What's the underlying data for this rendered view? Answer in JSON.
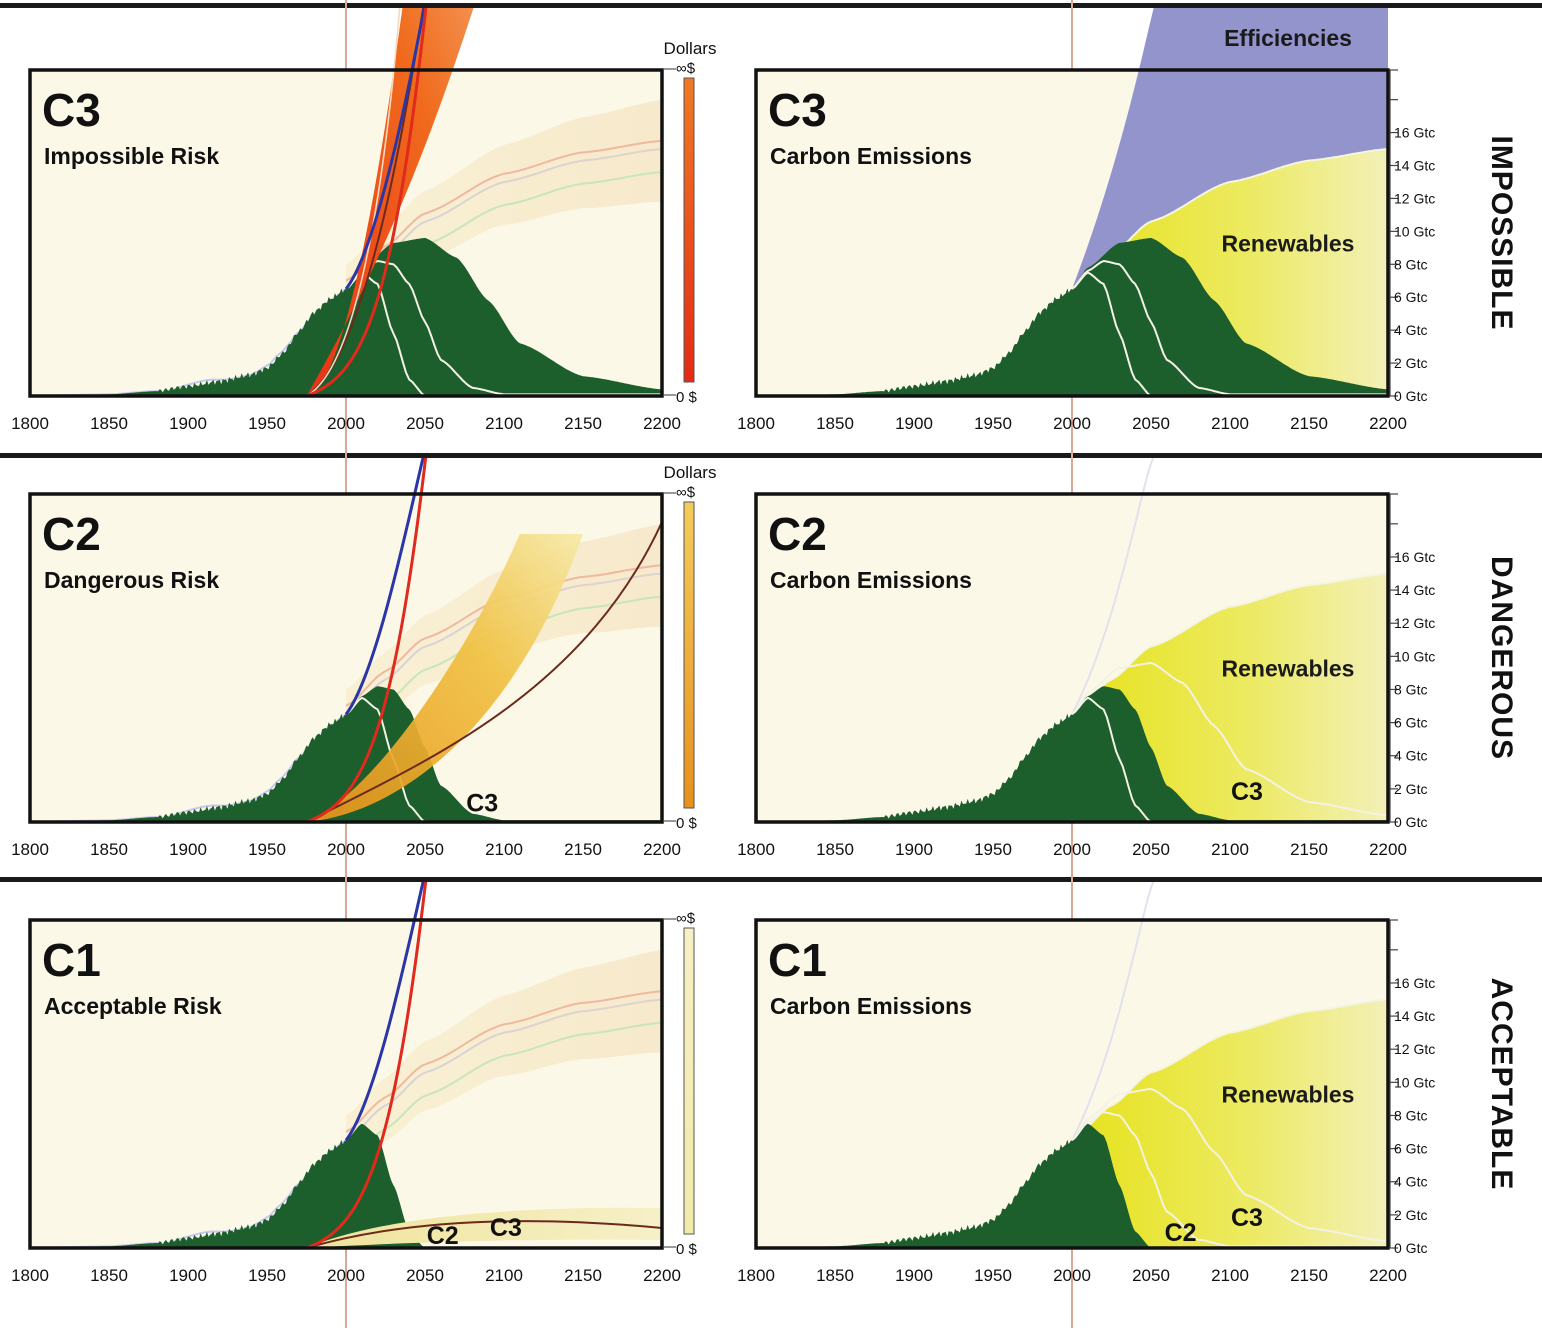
{
  "colors": {
    "background": "#fcf8e8",
    "fossil": "#1c5e2c",
    "renewables": "#e9e52c",
    "efficiencies": "#9494cc",
    "cost_band_hot": "#ec3a12",
    "cost_band_warm": "#f0a028",
    "cost_band_mild": "#f2eaa0",
    "blue_curve": "#2b36a6",
    "red_curve": "#e02a1c",
    "brown_curve": "#6b2a1c",
    "year_2000_marker": "#d9a896"
  },
  "x_tick_labels": [
    "1800",
    "1850",
    "1900",
    "1950",
    "2000",
    "2050",
    "2100",
    "2150",
    "2200"
  ],
  "gtc_tick_labels": [
    "0 Gtc",
    "2 Gtc",
    "4 Gtc",
    "6 Gtc",
    "8 Gtc",
    "10 Gtc",
    "12 Gtc",
    "14 Gtc",
    "16 Gtc"
  ],
  "currency_scale": {
    "top": "∞$",
    "bottom": "0 $",
    "title": "Dollars"
  },
  "rows": [
    {
      "level": "IMPOSSIBLE",
      "left_panel": {
        "code": "C3",
        "subtitle": "Impossible Risk",
        "show_dollars_title": true,
        "cost_band": "hot"
      },
      "right_panel": {
        "code": "C3",
        "subtitle": "Carbon Emissions",
        "band_labels": [
          "Efficiencies",
          "Renewables"
        ],
        "scenario_labels": []
      }
    },
    {
      "level": "DANGEROUS",
      "left_panel": {
        "code": "C2",
        "subtitle": "Dangerous Risk",
        "show_dollars_title": true,
        "cost_band": "warm",
        "scenario_labels": [
          "C3"
        ]
      },
      "right_panel": {
        "code": "C2",
        "subtitle": "Carbon Emissions",
        "band_labels": [
          "Renewables"
        ],
        "scenario_labels": [
          "C3"
        ]
      }
    },
    {
      "level": "ACCEPTABLE",
      "left_panel": {
        "code": "C1",
        "subtitle": "Acceptable Risk",
        "show_dollars_title": false,
        "cost_band": "mild",
        "scenario_labels": [
          "C2",
          "C3"
        ]
      },
      "right_panel": {
        "code": "C1",
        "subtitle": "Carbon Emissions",
        "band_labels": [
          "Renewables"
        ],
        "scenario_labels": [
          "C2",
          "C3"
        ]
      }
    }
  ],
  "chart_data": {
    "type": "area",
    "title": "",
    "x_range": [
      1800,
      2200
    ],
    "x_ticks": [
      1800,
      1850,
      1900,
      1950,
      2000,
      2050,
      2100,
      2150,
      2200
    ],
    "y_unit": "Gtc",
    "ylim": [
      0,
      20
    ],
    "y_ticks": [
      0,
      2,
      4,
      6,
      8,
      10,
      12,
      14,
      16
    ],
    "historical_emissions": {
      "x": [
        1800,
        1850,
        1880,
        1900,
        1920,
        1940,
        1950,
        1960,
        1970,
        1980,
        1990,
        2000
      ],
      "y": [
        0.0,
        0.1,
        0.3,
        0.6,
        0.9,
        1.3,
        1.7,
        2.6,
        3.9,
        5.1,
        5.9,
        6.5
      ]
    },
    "emission_scenarios": [
      {
        "name": "C1",
        "x": [
          2000,
          2010,
          2020,
          2030,
          2040,
          2050
        ],
        "y": [
          6.5,
          7.5,
          6.8,
          3.8,
          1.0,
          0.0
        ]
      },
      {
        "name": "C2",
        "x": [
          2000,
          2010,
          2020,
          2030,
          2040,
          2050,
          2060,
          2080,
          2100
        ],
        "y": [
          6.5,
          7.6,
          8.2,
          8.0,
          6.8,
          4.5,
          2.2,
          0.5,
          0.1
        ]
      },
      {
        "name": "C3",
        "x": [
          2000,
          2010,
          2030,
          2050,
          2070,
          2090,
          2110,
          2150,
          2200
        ],
        "y": [
          6.5,
          7.8,
          9.3,
          9.6,
          8.4,
          5.8,
          3.2,
          1.2,
          0.4
        ]
      }
    ],
    "energy_demand": {
      "x": [
        2000,
        2025,
        2050,
        2100,
        2150,
        2200
      ],
      "y": [
        6.5,
        8.6,
        10.6,
        13.0,
        14.3,
        15.0
      ]
    },
    "panel_rows": [
      "IMPOSSIBLE",
      "DANGEROUS",
      "ACCEPTABLE"
    ]
  }
}
